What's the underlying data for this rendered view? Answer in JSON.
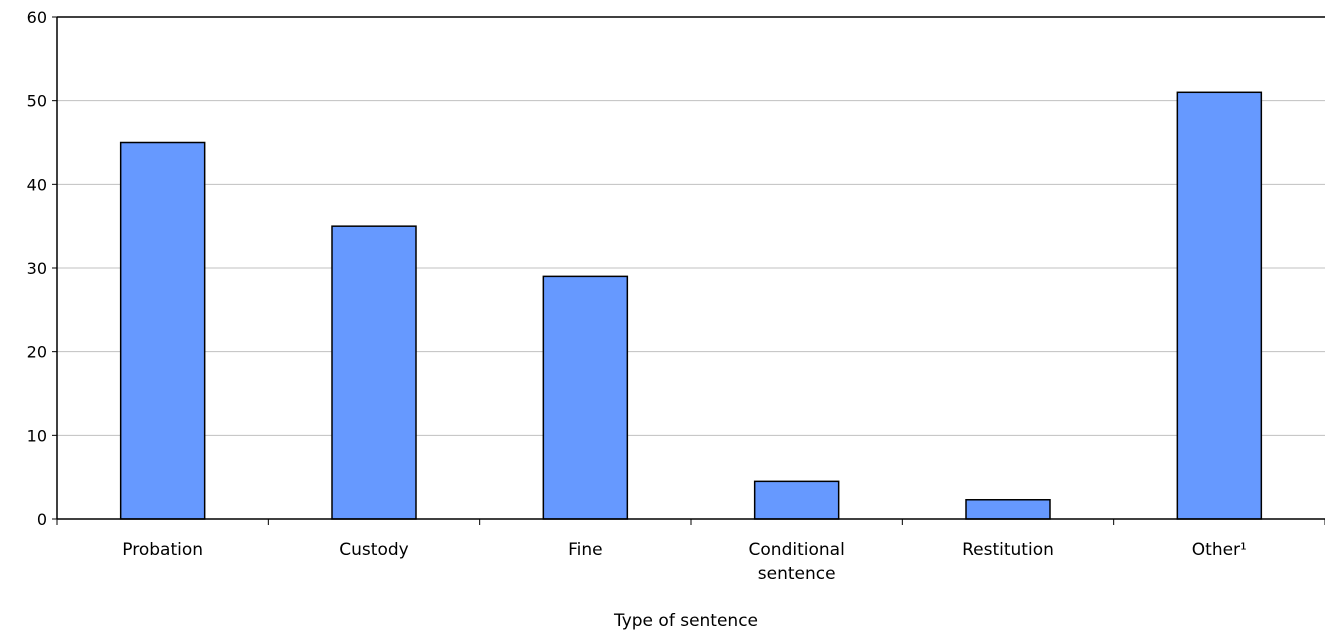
{
  "chart_data": {
    "type": "bar",
    "categories": [
      "Probation",
      "Custody",
      "Fine",
      "Conditional sentence",
      "Restitution",
      "Other¹"
    ],
    "category_label_lines": [
      [
        "Probation"
      ],
      [
        "Custody"
      ],
      [
        "Fine"
      ],
      [
        "Conditional",
        "sentence"
      ],
      [
        "Restitution"
      ],
      [
        "Other¹"
      ]
    ],
    "values": [
      45,
      35,
      29,
      4.5,
      2.3,
      51
    ],
    "xlabel": "Type of sentence",
    "ylabel": "",
    "ylim": [
      0,
      60
    ],
    "yticks": [
      0,
      10,
      20,
      30,
      40,
      50,
      60
    ],
    "grid": true,
    "bar_color": "#6699ff",
    "bar_edge_color": "#000000",
    "grid_color": "#c0c0c0"
  }
}
